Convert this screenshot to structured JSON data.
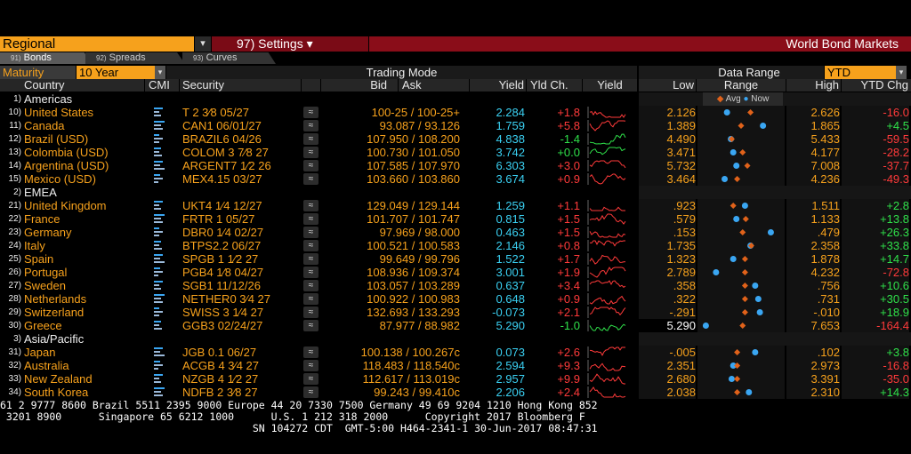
{
  "header": {
    "regional": "Regional",
    "settings": "97) Settings ▾",
    "title": "World Bond Markets"
  },
  "tabs": [
    {
      "num": "91)",
      "label": "Bonds"
    },
    {
      "num": "92)",
      "label": "Spreads"
    },
    {
      "num": "93)",
      "label": "Curves"
    }
  ],
  "controls": {
    "maturity_label": "Maturity",
    "maturity_value": "10 Year",
    "trading_mode": "Trading Mode",
    "data_range": "Data Range",
    "data_range_value": "YTD"
  },
  "columns": {
    "country": "Country",
    "cmi": "CMI",
    "security": "Security",
    "bid": "Bid",
    "ask": "Ask",
    "yield": "Yield",
    "yld_chg": "Yld Ch.",
    "yield_chart": "Yield",
    "low": "Low",
    "range": "Range",
    "high": "High",
    "ytd_chg": "YTD Chg",
    "legend_avg": "Avg",
    "legend_now": "Now"
  },
  "groups": [
    {
      "idx": "1)",
      "label": "Americas"
    },
    {
      "idx": "2)",
      "label": "EMEA"
    },
    {
      "idx": "3)",
      "label": "Asia/Pacific"
    }
  ],
  "rows": [
    {
      "idx": "10)",
      "country": "United States",
      "security": "T 2 3⁄8 05/27",
      "bidask": "100-25 / 100-25+",
      "yield": "2.284",
      "chg": "+1.8",
      "low": "2.126",
      "high": "2.626",
      "ytd": "-16.0",
      "avg": 0.62,
      "now": 0.32
    },
    {
      "idx": "11)",
      "country": "Canada",
      "security": "CAN1 06/01/27",
      "bidask": "93.087 / 93.126",
      "yield": "1.759",
      "chg": "+5.8",
      "low": "1.389",
      "high": "1.865",
      "ytd": "+4.5",
      "avg": 0.5,
      "now": 0.78
    },
    {
      "idx": "12)",
      "country": "Brazil (USD)",
      "security": "BRAZIL6 04/26",
      "bidask": "107.950 / 108.200",
      "yield": "4.838",
      "chg": "-1.4",
      "low": "4.490",
      "high": "5.433",
      "ytd": "-59.5",
      "avg": 0.38,
      "now": 0.37
    },
    {
      "idx": "13)",
      "country": "Colombia (USD)",
      "security": "COLOM 3 7⁄8 27",
      "bidask": "100.730 / 101.050",
      "yield": "3.742",
      "chg": "+0.0",
      "low": "3.471",
      "high": "4.177",
      "ytd": "-28.2",
      "avg": 0.52,
      "now": 0.4
    },
    {
      "idx": "14)",
      "country": "Argentina (USD)",
      "security": "ARGENT7 1⁄2 26",
      "bidask": "107.585 / 107.970",
      "yield": "6.303",
      "chg": "+3.0",
      "low": "5.732",
      "high": "7.008",
      "ytd": "-37.7",
      "avg": 0.58,
      "now": 0.44
    },
    {
      "idx": "15)",
      "country": "Mexico (USD)",
      "security": "MEX4.15 03/27",
      "bidask": "103.660 / 103.860",
      "yield": "3.674",
      "chg": "+0.9",
      "low": "3.464",
      "high": "4.236",
      "ytd": "-49.3",
      "avg": 0.45,
      "now": 0.29
    },
    {
      "idx": "21)",
      "country": "United Kingdom",
      "security": "UKT4 1⁄4 12/27",
      "bidask": "129.049 / 129.144",
      "yield": "1.259",
      "chg": "+1.1",
      "low": ".923",
      "high": "1.511",
      "ytd": "+2.8",
      "avg": 0.4,
      "now": 0.55
    },
    {
      "idx": "22)",
      "country": "France",
      "security": "FRTR 1 05/27",
      "bidask": "101.707 / 101.747",
      "yield": "0.815",
      "chg": "+1.5",
      "low": ".579",
      "high": "1.133",
      "ytd": "+13.8",
      "avg": 0.56,
      "now": 0.44
    },
    {
      "idx": "23)",
      "country": "Germany",
      "security": "DBR0 1⁄4 02/27",
      "bidask": "97.969 / 98.000",
      "yield": "0.463",
      "chg": "+1.5",
      "low": ".153",
      "high": ".479",
      "ytd": "+26.3",
      "avg": 0.52,
      "now": 0.88
    },
    {
      "idx": "24)",
      "country": "Italy",
      "security": "BTPS2.2 06/27",
      "bidask": "100.521 / 100.583",
      "yield": "2.146",
      "chg": "+0.8",
      "low": "1.735",
      "high": "2.358",
      "ytd": "+33.8",
      "avg": 0.63,
      "now": 0.62
    },
    {
      "idx": "25)",
      "country": "Spain",
      "security": "SPGB 1 1⁄2 27",
      "bidask": "99.649 / 99.796",
      "yield": "1.522",
      "chg": "+1.7",
      "low": "1.323",
      "high": "1.878",
      "ytd": "+14.7",
      "avg": 0.55,
      "now": 0.4
    },
    {
      "idx": "26)",
      "country": "Portugal",
      "security": "PGB4 1⁄8 04/27",
      "bidask": "108.936 / 109.374",
      "yield": "3.001",
      "chg": "+1.9",
      "low": "2.789",
      "high": "4.232",
      "ytd": "-72.8",
      "avg": 0.55,
      "now": 0.18
    },
    {
      "idx": "27)",
      "country": "Sweden",
      "security": "SGB1 11/12/26",
      "bidask": "103.057 / 103.289",
      "yield": "0.637",
      "chg": "+3.4",
      "low": ".358",
      "high": ".756",
      "ytd": "+10.6",
      "avg": 0.55,
      "now": 0.68
    },
    {
      "idx": "28)",
      "country": "Netherlands",
      "security": "NETHER0 3⁄4 27",
      "bidask": "100.922 / 100.983",
      "yield": "0.648",
      "chg": "+0.9",
      "low": ".322",
      "high": ".731",
      "ytd": "+30.5",
      "avg": 0.55,
      "now": 0.72
    },
    {
      "idx": "29)",
      "country": "Switzerland",
      "security": "SWISS 3 1⁄4 27",
      "bidask": "132.693 / 133.293",
      "yield": "-0.073",
      "chg": "+2.1",
      "low": "-.291",
      "high": "-.010",
      "ytd": "+18.9",
      "avg": 0.55,
      "now": 0.74
    },
    {
      "idx": "30)",
      "country": "Greece",
      "security": "GGB3 02/24/27",
      "bidask": "87.977 / 88.982",
      "yield": "5.290",
      "chg": "-1.0",
      "low": "5.290",
      "high": "7.653",
      "ytd": "-164.4",
      "avg": 0.52,
      "now": 0.05,
      "low_highlight": true
    },
    {
      "idx": "31)",
      "country": "Japan",
      "security": "JGB 0.1 06/27",
      "bidask": "100.138 / 100.267c",
      "yield": "0.073",
      "chg": "+2.6",
      "low": "-.005",
      "high": ".102",
      "ytd": "+3.8",
      "avg": 0.45,
      "now": 0.68
    },
    {
      "idx": "32)",
      "country": "Australia",
      "security": "ACGB 4 3⁄4 27",
      "bidask": "118.483 / 118.540c",
      "yield": "2.594",
      "chg": "+9.3",
      "low": "2.351",
      "high": "2.973",
      "ytd": "-16.8",
      "avg": 0.45,
      "now": 0.4
    },
    {
      "idx": "33)",
      "country": "New Zealand",
      "security": "NZGB 4 1⁄2 27",
      "bidask": "112.617 / 113.019c",
      "yield": "2.957",
      "chg": "+9.9",
      "low": "2.680",
      "high": "3.391",
      "ytd": "-35.0",
      "avg": 0.45,
      "now": 0.38
    },
    {
      "idx": "34)",
      "country": "South Korea",
      "security": "NDFB 2 3⁄8 27",
      "bidask": "99.243 / 99.410c",
      "yield": "2.206",
      "chg": "+2.4",
      "low": "2.038",
      "high": "2.310",
      "ytd": "+14.3",
      "avg": 0.45,
      "now": 0.6
    }
  ],
  "footer": {
    "line1": "61 2 9777 8600 Brazil 5511 2395 9000 Europe 44 20 7330 7500 Germany 49 69 9204 1210 Hong Kong 852",
    "line2": " 3201 8900      Singapore 65 6212 1000      U.S. 1 212 318 2000      Copyright 2017 Bloomberg F",
    "line3": "                                         SN 104272 CDT  GMT-5:00 H464-2341-1 30-Jun-2017 08:47:31 "
  },
  "colors": {
    "amber": "#f6a11c",
    "cyan": "#3ad0f2",
    "red": "#ff3a3a",
    "green": "#2fe04a",
    "avg_marker": "#e0621a",
    "now_marker": "#3aa6f2"
  }
}
